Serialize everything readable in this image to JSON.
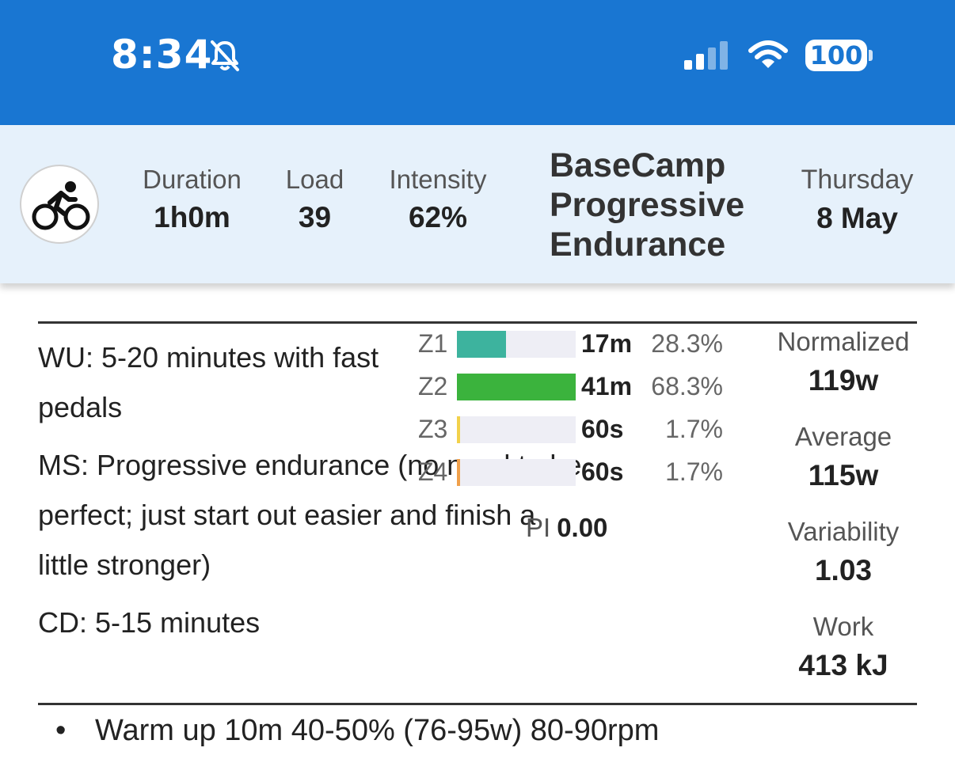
{
  "status_bar": {
    "time": "8:34",
    "bell_icon": "bell-slash-icon",
    "signal_icon": "cellular-signal-icon",
    "wifi_icon": "wifi-icon",
    "battery_level": "100"
  },
  "header": {
    "activity_icon": "bicycle-icon",
    "duration": {
      "label": "Duration",
      "value": "1h0m"
    },
    "load": {
      "label": "Load",
      "value": "39"
    },
    "intensity": {
      "label": "Intensity",
      "value": "62%"
    },
    "title": "BaseCamp Progressive Endurance",
    "day": "Thursday",
    "date": "8 May"
  },
  "description": {
    "wu": "WU: 5-20 minutes with fast pedals",
    "ms": "MS: Progressive endurance (no need to be perfect; just start out easier and finish a little stronger)",
    "cd": "CD: 5-15 minutes"
  },
  "zones": [
    {
      "label": "Z1",
      "time": "17m",
      "percent": "28.3%",
      "fraction": 0.283,
      "color": "#3db39e"
    },
    {
      "label": "Z2",
      "time": "41m",
      "percent": "68.3%",
      "fraction": 0.683,
      "color": "#3bb33d"
    },
    {
      "label": "Z3",
      "time": "60s",
      "percent": "1.7%",
      "fraction": 0.017,
      "color": "#f2d14b"
    },
    {
      "label": "Z4",
      "time": "60s",
      "percent": "1.7%",
      "fraction": 0.017,
      "color": "#f0a04b"
    }
  ],
  "pi": {
    "label": "PI",
    "value": "0.00"
  },
  "power": {
    "normalized": {
      "label": "Normalized",
      "value": "119w"
    },
    "average": {
      "label": "Average",
      "value": "115w"
    },
    "variability": {
      "label": "Variability",
      "value": "1.03"
    },
    "work": {
      "label": "Work",
      "value": "413 kJ"
    }
  },
  "steps": [
    "Warm up 10m 40-50% (76-95w) 80-90rpm"
  ]
}
